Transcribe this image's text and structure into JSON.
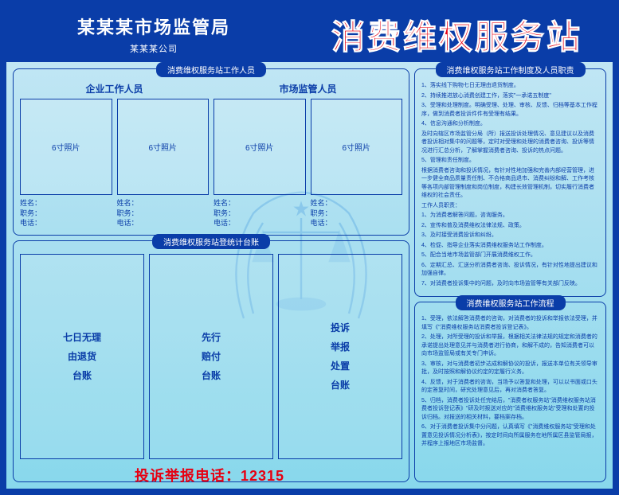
{
  "header": {
    "org": "某某某市场监管局",
    "sub": "某某某公司",
    "title": "消费维权服务站"
  },
  "staff_panel": {
    "title": "消费维权服务站工作人员",
    "groups": [
      {
        "title": "企业工作人员",
        "cards": [
          {
            "photo": "6寸照片",
            "name": "姓名：",
            "duty": "职务：",
            "tel": "电话："
          },
          {
            "photo": "6寸照片",
            "name": "姓名：",
            "duty": "职务：",
            "tel": "电话："
          }
        ]
      },
      {
        "title": "市场监管人员",
        "cards": [
          {
            "photo": "6寸照片",
            "name": "姓名：",
            "duty": "职务：",
            "tel": "电话："
          },
          {
            "photo": "6寸照片",
            "name": "姓名：",
            "duty": "职务：",
            "tel": "电话："
          }
        ]
      }
    ]
  },
  "ledger_panel": {
    "title": "消费维权服务站登统计台账",
    "boxes": [
      "七日无理\n由退货\n台账",
      "先行\n赔付\n台账",
      "投诉\n举报\n处置\n台账"
    ]
  },
  "duties_panel": {
    "title": "消费维权服务站工作制度及人员职责",
    "lines": [
      "1、落实线下购物七日无理由退货制度。",
      "2、持续推进放心消费创建工作，落实\"一承诺五制度\"",
      "3、受理和处理制度。明确受理、处理、审核、反馈、归档等基本工作程序，做到消费者投诉件件有受理有结果。",
      "4、信息沟通和分析制度。",
      "及时向辖区市场监管分局（所）报送投诉处理情况、意见建议以及消费者投诉相对集中的问题等，定时对受理和处理的消费者咨询、投诉等情况进行汇总分析，了解掌握消费者咨询、投诉的热点问题。",
      "5、管理和责任制度。",
      "根据消费者咨询和投诉情况，有针对性地加强和完善内部经营管理，进一步健全商品质量责任制、不合格商品退市、消费纠纷和解、工作考核等各项内部管理制度和岗位制度，构建长效管理机制，切实履行消费者维权的社会责任。",
      "工作人员职责：",
      "1、为消费者解答问题，咨询服务。",
      "2、宣传和普及消费维权法律法规、政策。",
      "3、及时接受消费投诉和纠纷。",
      "4、检促、指导企业落实消费维权服务站工作制度。",
      "5、配合当地市场监管部门开展消费维权工作。",
      "6、定期汇总、汇送分析消费者咨询、投诉情况，有针对性地提出建议和加强自律。",
      "7、对消费者投诉集中的问题，及时向市场监管等有关部门反映。"
    ]
  },
  "process_panel": {
    "title": "消费维权服务站工作流程",
    "lines": [
      "1、受理，依法解答消费者的咨询，对消费者的投诉和举报依法受理，并填写《\"消费维权服务站消费者投诉登记表》。",
      "2、处理，对所受理的投诉和举报，根据相关法律法规的规定和消费者的承诺提出处理意见并与消费者进行协商，和解不成的，告知消费者可以向市场监管局或有关专门申诉。",
      "3、审核，对与消费者初步达成和解协议的投诉，报送本单位有关领导审批，及时按照和解协议约定的定履行义务。",
      "4、反馈，对于消费者的咨询，当场予以答复和处理，可以以书面或口头的定答复时间，研究处理意见后，再对消费者答复。",
      "5、归档，消费者投诉处任完结后，\"消费者权服务站\"消费维权服务站消费者投诉登记表》\"研及时报送对应的\"消费维权服务站\"受理和处置的投诉归档。对报送的相关材料，要档案存档。",
      "6、对于消费者投诉集中分问题，认真填写《\"消费维权服务站\"受理和处置意见投诉情况分析表》，按定时间向所属服务在地所属区县监管局报，并程序上报地区市场监督。"
    ]
  },
  "hotline": {
    "label": "投诉举报电话：",
    "number": "12315"
  },
  "colors": {
    "primary": "#0a3da8",
    "accent": "#e60012",
    "bg_light": "#c8e8f5",
    "bg_dark": "#88d8ec"
  }
}
